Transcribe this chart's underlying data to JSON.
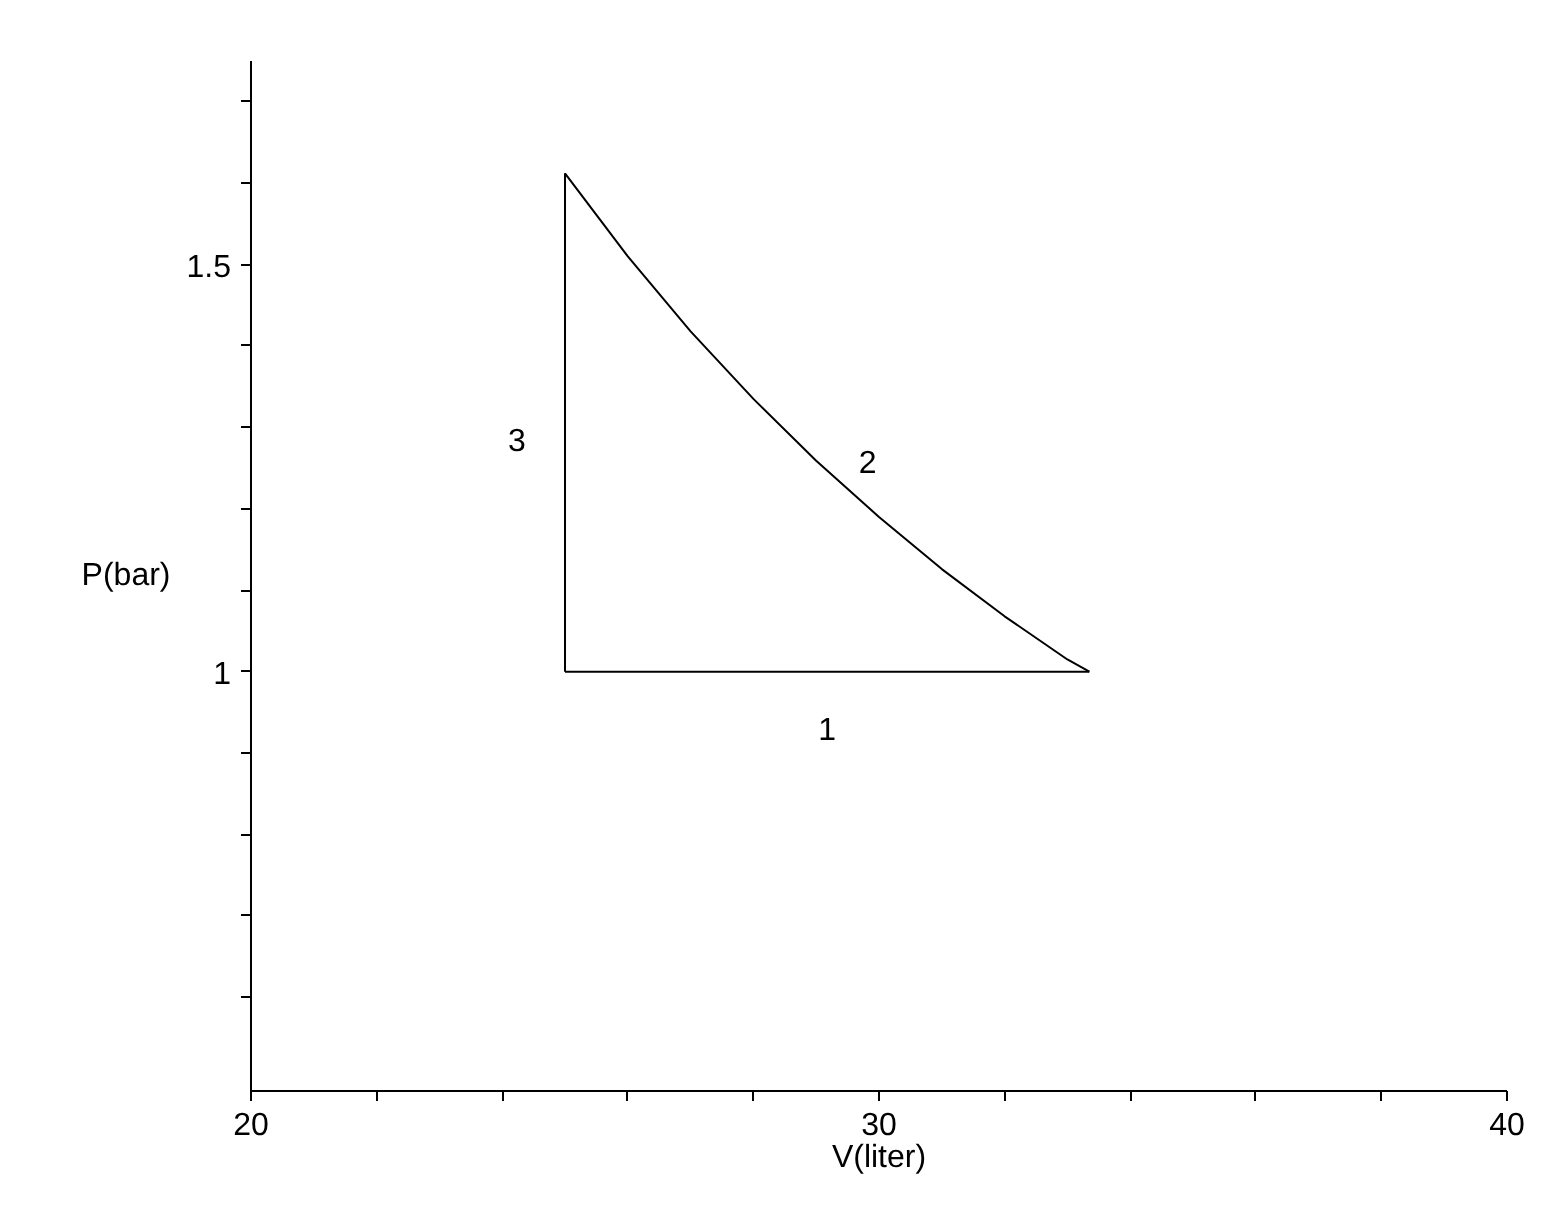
{
  "chart_data": {
    "type": "line",
    "xlabel": "V(liter)",
    "ylabel": "P(bar)",
    "series": [
      {
        "color": "#000000",
        "x": [
          25,
          33.35
        ],
        "values": [
          1.0,
          1.0
        ]
      },
      {
        "color": "#000000",
        "x": [
          25,
          26,
          27,
          28,
          29,
          30,
          31,
          32,
          33,
          33.35
        ],
        "values": [
          1.612,
          1.51,
          1.418,
          1.335,
          1.259,
          1.19,
          1.126,
          1.068,
          1.015,
          1.0
        ]
      },
      {
        "color": "#000000",
        "x": [
          25,
          25
        ],
        "values": [
          1.0,
          1.612
        ]
      }
    ],
    "xlim": [
      20,
      40
    ],
    "ylim": [
      0.485,
      1.75
    ],
    "xticks": [
      20,
      {
        "value": 22,
        "label": null
      },
      {
        "value": 24,
        "label": null
      },
      {
        "value": 26,
        "label": null
      },
      {
        "value": 28,
        "label": null
      },
      30,
      {
        "value": 32,
        "label": null
      },
      {
        "value": 34,
        "label": null
      },
      {
        "value": 36,
        "label": null
      },
      {
        "value": 38,
        "label": null
      },
      40
    ],
    "yticks": [
      {
        "value": 0.6,
        "label": null
      },
      {
        "value": 0.7,
        "label": null
      },
      {
        "value": 0.8,
        "label": null
      },
      {
        "value": 0.9,
        "label": null
      },
      1,
      {
        "value": 1.1,
        "label": null
      },
      {
        "value": 1.2,
        "label": null
      },
      {
        "value": 1.3,
        "label": null
      },
      {
        "value": 1.4,
        "label": null
      },
      1.5,
      {
        "value": 1.6,
        "label": null
      },
      {
        "value": 1.7,
        "label": null
      }
    ],
    "annotations": [
      "1",
      "2",
      "3"
    ],
    "grid": false,
    "marker": "none",
    "line_style": "solid"
  }
}
